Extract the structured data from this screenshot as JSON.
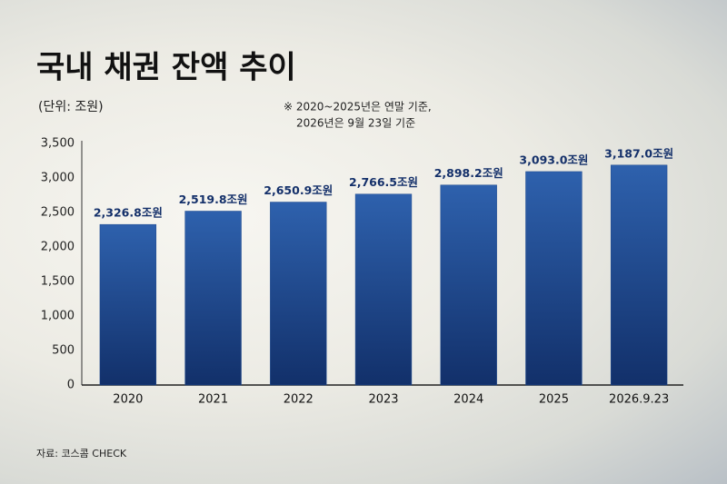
{
  "chart_data": {
    "type": "bar",
    "title": "국내 채권 잔액 추이",
    "subtitle": "(단위: 조원)",
    "note": [
      "※ 2020~2025년은 연말 기준,",
      "2026년은 9월 23일 기준"
    ],
    "source": "자료: 코스콤 CHECK",
    "categories": [
      "2020",
      "2021",
      "2022",
      "2023",
      "2024",
      "2025",
      "2026.9.23"
    ],
    "values": [
      2326.8,
      2519.8,
      2650.9,
      2766.5,
      2898.2,
      3093.0,
      3187.0
    ],
    "value_labels": [
      "2,326.8조원",
      "2,519.8조원",
      "2,650.9조원",
      "2,766.5조원",
      "2,898.2조원",
      "3,093.0조원",
      "3,187.0조원"
    ],
    "color": "#1f4a8f",
    "ylim": [
      0,
      3500
    ],
    "yticks": [
      0,
      500,
      {
        "value": 1000,
        "label": "1,000"
      },
      {
        "value": 1500,
        "label": "1,500"
      },
      {
        "value": 2000,
        "label": "2,000"
      },
      {
        "value": 2500,
        "label": "2,500"
      },
      {
        "value": 3000,
        "label": "3,000"
      },
      {
        "value": 3500,
        "label": "3,500"
      }
    ],
    "grid": false
  }
}
